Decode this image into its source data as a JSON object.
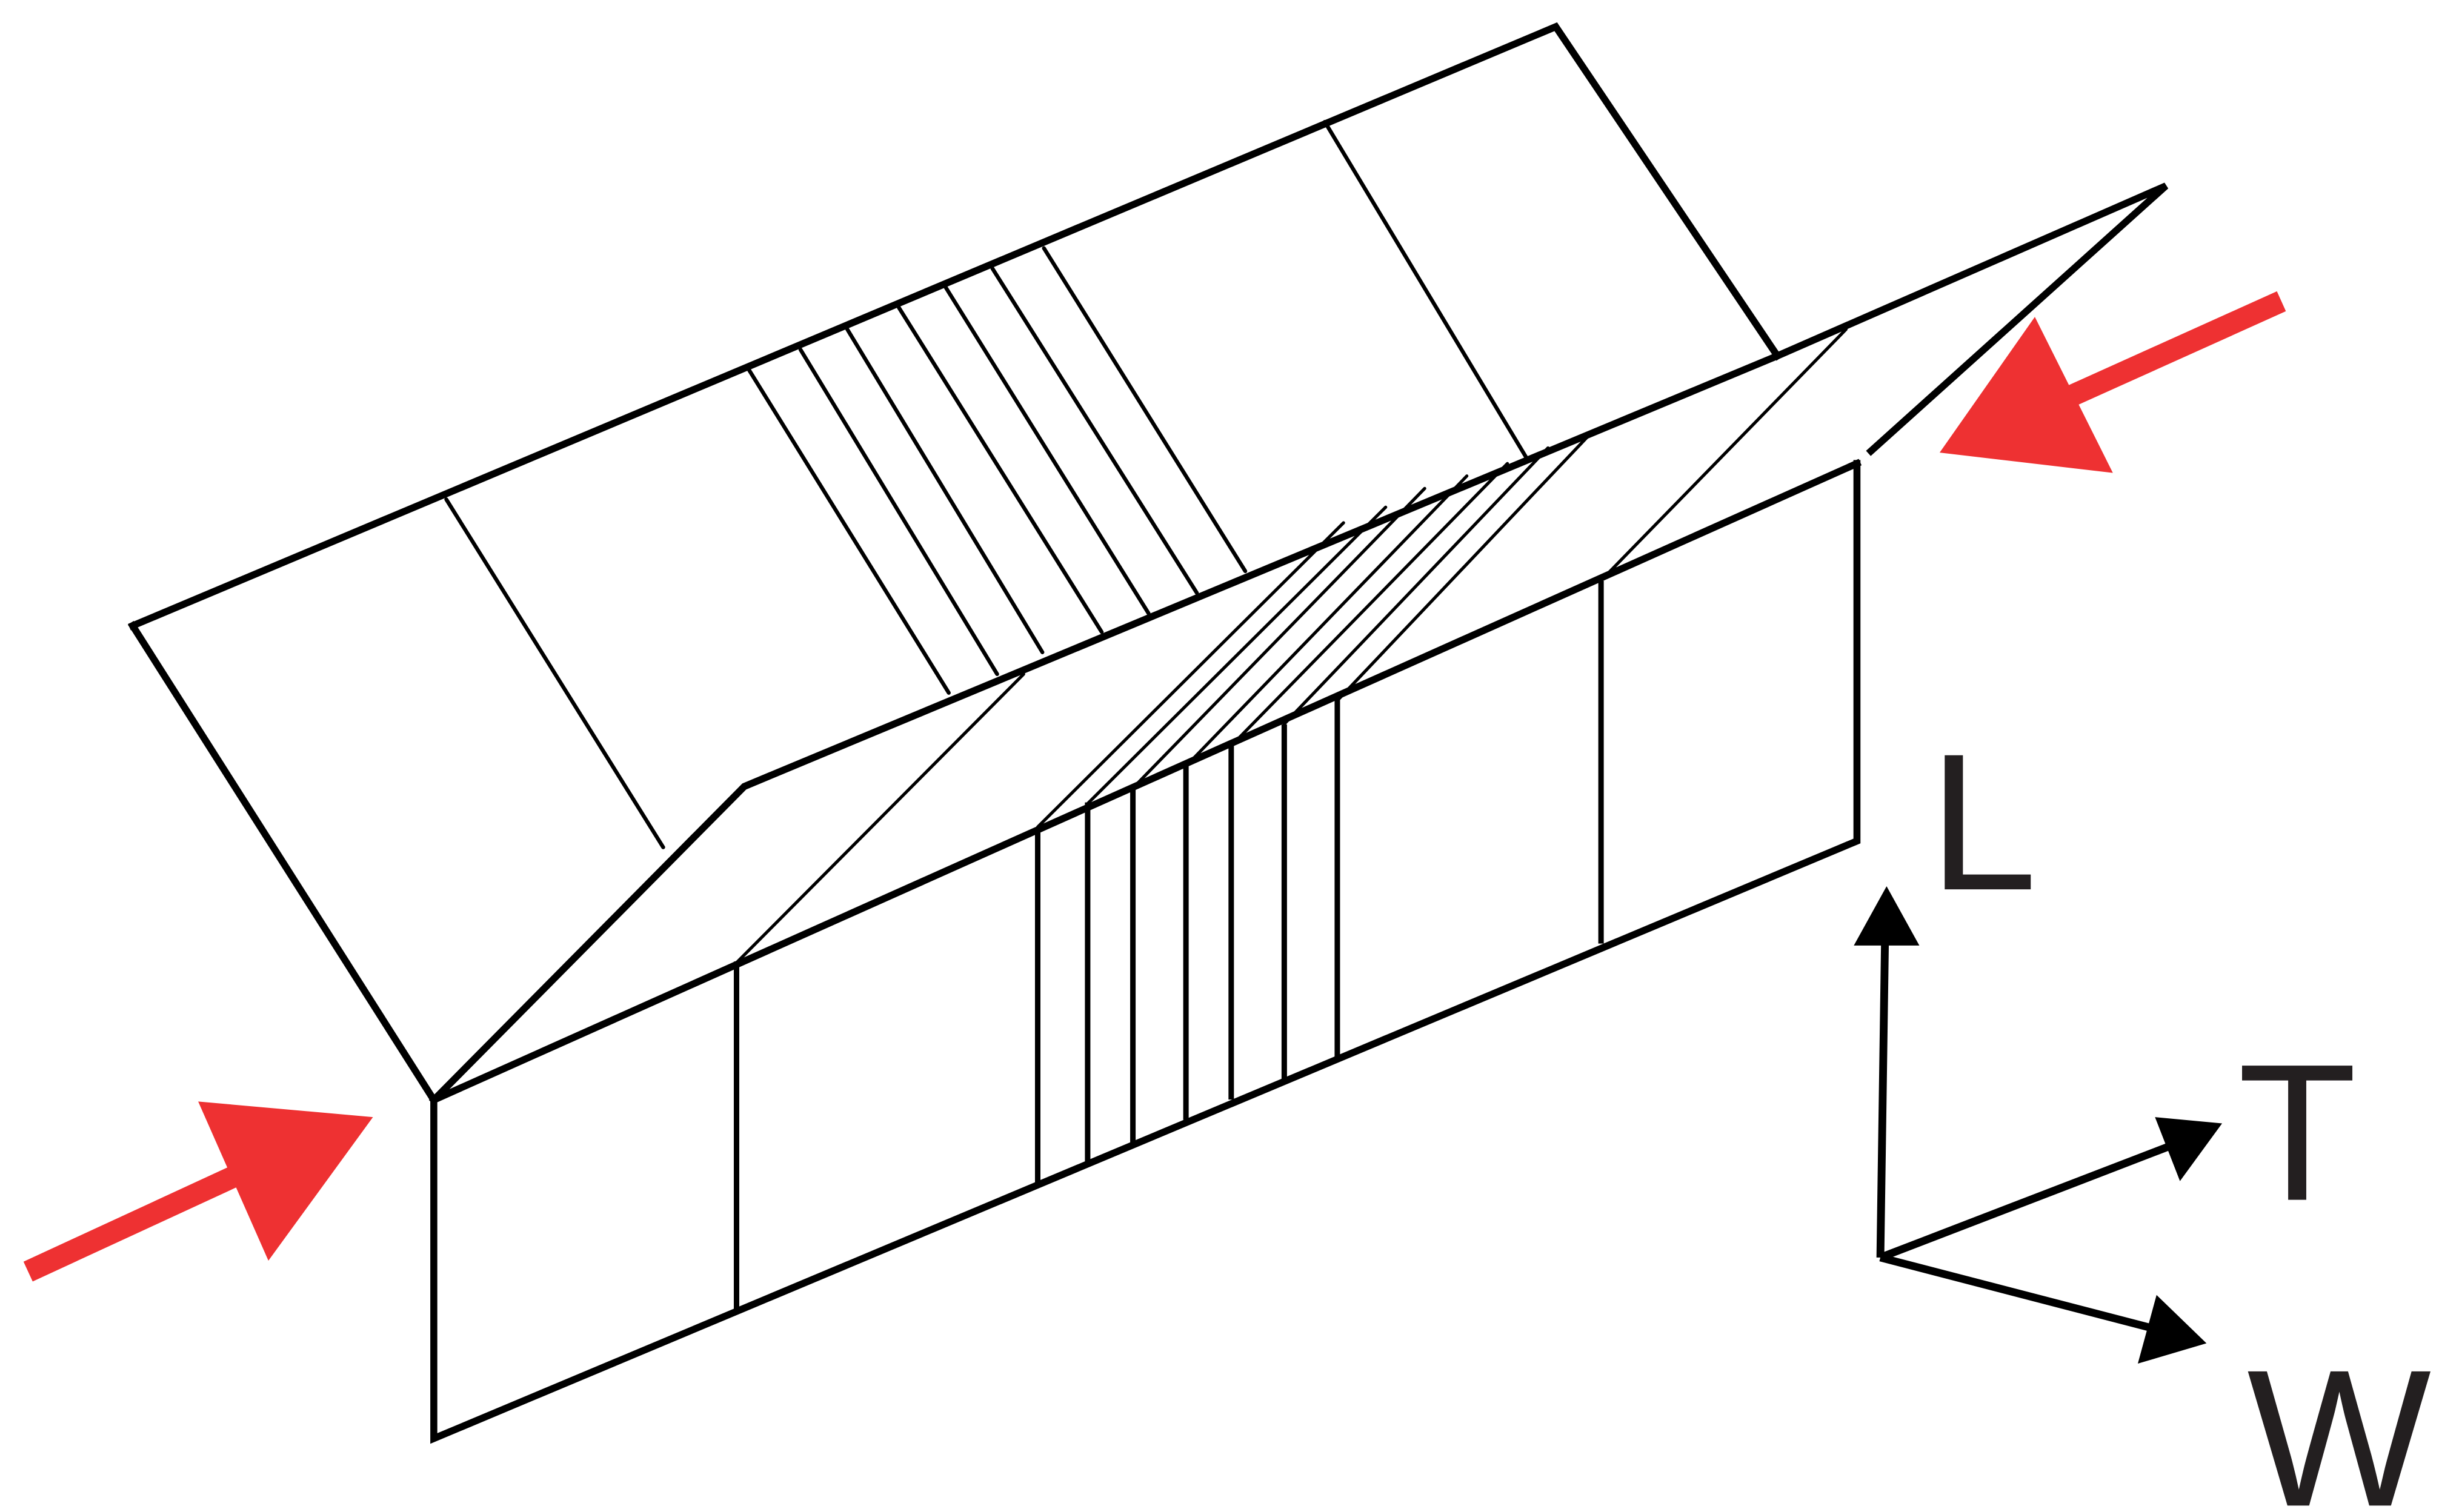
{
  "axes": {
    "vertical_label": "L",
    "right_label": "T",
    "down_right_label": "W"
  },
  "colors": {
    "outline": "#000000",
    "arrow": "#ee3132",
    "axis_text": "#231f20"
  }
}
